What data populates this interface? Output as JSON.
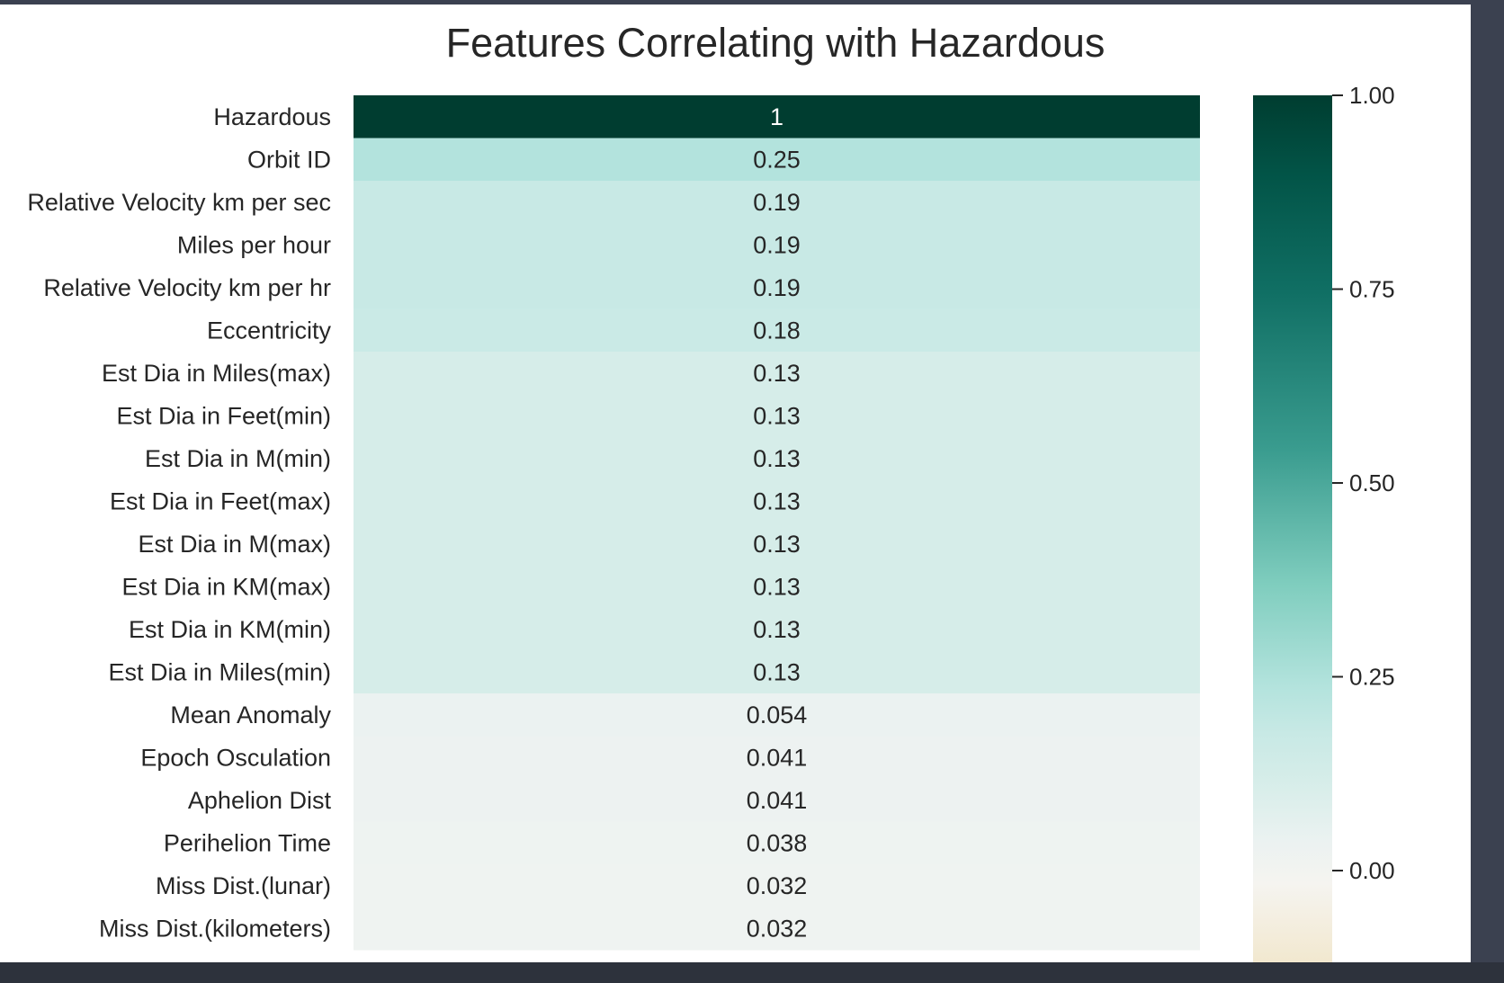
{
  "chart_data": {
    "type": "heatmap",
    "title": "Features Correlating with Hazardous",
    "rows": [
      "Hazardous",
      "Orbit ID",
      "Relative Velocity km per sec",
      "Miles per hour",
      "Relative Velocity km per hr",
      "Eccentricity",
      "Est Dia in Miles(max)",
      "Est Dia in Feet(min)",
      "Est Dia in M(min)",
      "Est Dia in Feet(max)",
      "Est Dia in M(max)",
      "Est Dia in KM(max)",
      "Est Dia in KM(min)",
      "Est Dia in Miles(min)",
      "Mean Anomaly",
      "Epoch Osculation",
      "Aphelion Dist",
      "Perihelion Time",
      "Miss Dist.(lunar)",
      "Miss Dist.(kilometers)"
    ],
    "values": [
      1,
      0.25,
      0.19,
      0.19,
      0.19,
      0.18,
      0.13,
      0.13,
      0.13,
      0.13,
      0.13,
      0.13,
      0.13,
      0.13,
      0.054,
      0.041,
      0.041,
      0.038,
      0.032,
      0.032
    ],
    "cell_labels": [
      "1",
      "0.25",
      "0.19",
      "0.19",
      "0.19",
      "0.18",
      "0.13",
      "0.13",
      "0.13",
      "0.13",
      "0.13",
      "0.13",
      "0.13",
      "0.13",
      "0.054",
      "0.041",
      "0.041",
      "0.038",
      "0.032",
      "0.032"
    ],
    "colorbar": {
      "range": [
        -0.1,
        1.0
      ],
      "ticks": [
        1.0,
        0.75,
        0.5,
        0.25,
        0.0
      ],
      "tick_labels": [
        "1.00",
        "0.75",
        "0.50",
        "0.25",
        "0.00"
      ]
    },
    "colormap": "BrBG",
    "colormap_stops": [
      {
        "v": -0.1,
        "color": "#f2e8cf"
      },
      {
        "v": 0.0,
        "color": "#f5f4f0"
      },
      {
        "v": 0.054,
        "color": "#ebf2f1"
      },
      {
        "v": 0.13,
        "color": "#d6ede9"
      },
      {
        "v": 0.19,
        "color": "#c8e9e5"
      },
      {
        "v": 0.25,
        "color": "#b3e3dd"
      },
      {
        "v": 0.38,
        "color": "#7fcdbe"
      },
      {
        "v": 0.55,
        "color": "#3a9c8f"
      },
      {
        "v": 0.75,
        "color": "#106f64"
      },
      {
        "v": 0.9,
        "color": "#025447"
      },
      {
        "v": 1.0,
        "color": "#003d30"
      }
    ]
  }
}
